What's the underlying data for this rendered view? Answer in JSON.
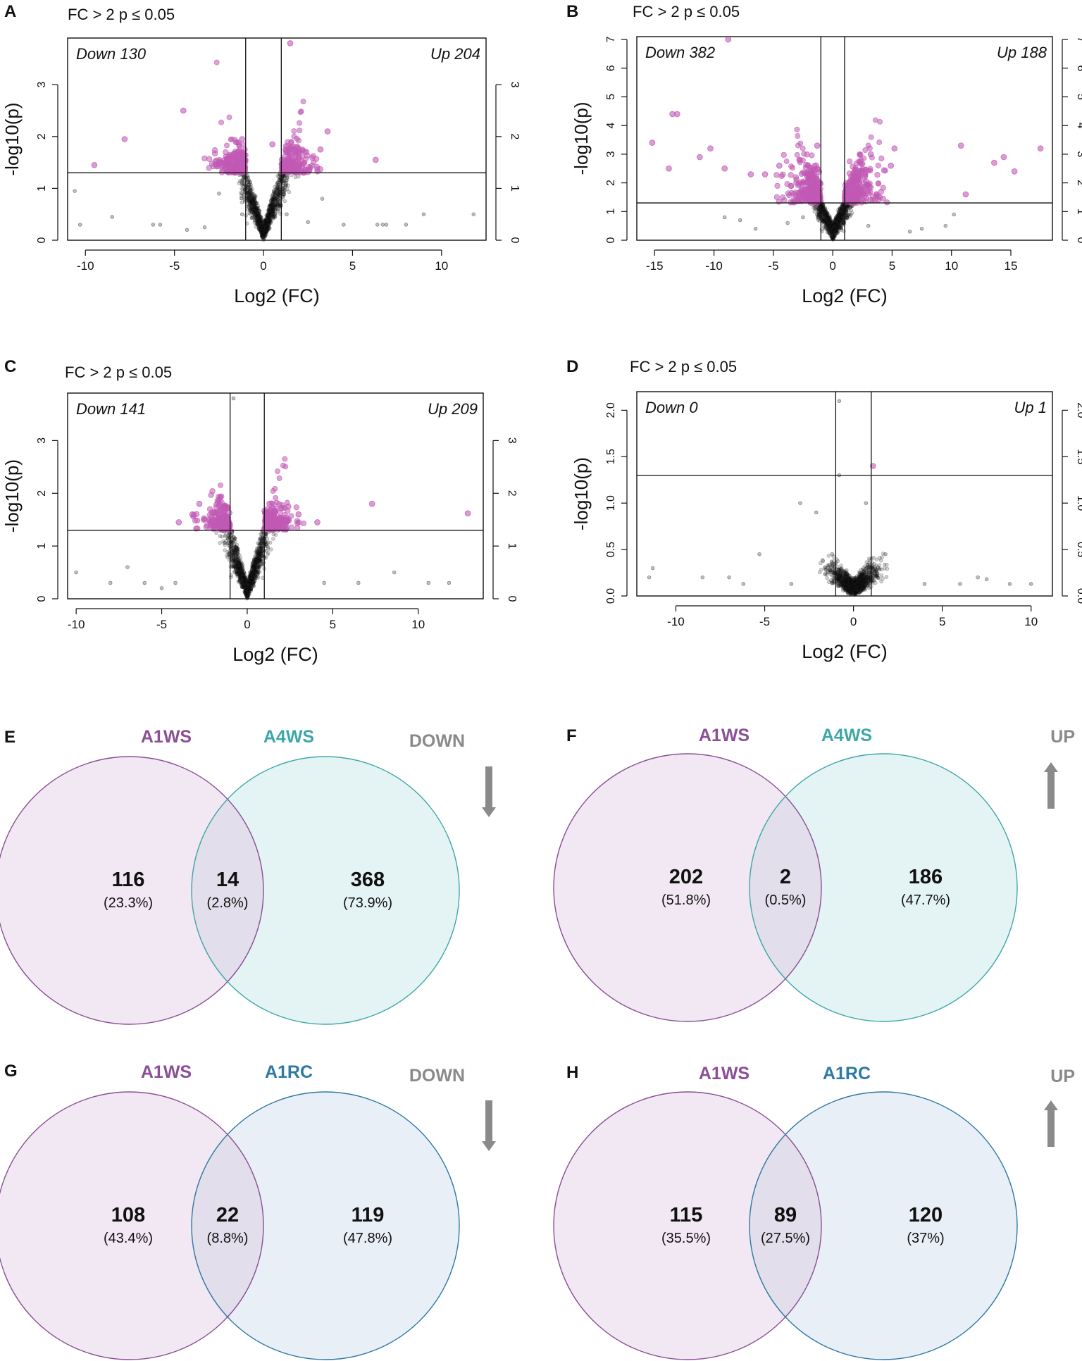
{
  "colors": {
    "sig": "#c15ab5",
    "nonsig": "#000000",
    "a1ws": "#8b4f96",
    "a4ws": "#3fa7a8",
    "a1rc": "#2f79a3",
    "a1ws_fill": "#f1e8f3",
    "a4ws_fill": "#e4f4f5",
    "a1rc_fill": "#e9eff7",
    "overlap_fill": "#e2deeb",
    "arrow": "#8a8a8a",
    "direction_label": "#8a8a8a"
  },
  "chart_data": [
    {
      "panel": "A",
      "type": "scatter",
      "subtype": "volcano",
      "criteria": "FC > 2   p ≤ 0.05",
      "xlabel": "Log2 (FC)",
      "ylabel": "-log10(p)",
      "xlim": [
        -11,
        12.5
      ],
      "ylim": [
        0,
        3.9
      ],
      "xticks": [
        -10,
        -5,
        0,
        5,
        10
      ],
      "xtick_labels": [
        "-10",
        "-5",
        "0",
        "5",
        "10"
      ],
      "yticks": [
        0,
        1,
        2,
        3
      ],
      "ytick_labels": [
        "0",
        "1",
        "2",
        "3"
      ],
      "fc_threshold": 1,
      "p_threshold": 1.3,
      "down_label": "Down 130",
      "up_label": "Up 204",
      "sig_points": [
        [
          -9.5,
          1.45
        ],
        [
          -7.8,
          1.95
        ],
        [
          -4.5,
          2.5
        ],
        [
          -1.2,
          1.95
        ],
        [
          0.5,
          1.85
        ],
        [
          1.5,
          3.8
        ],
        [
          3.6,
          2.1
        ],
        [
          6.3,
          1.55
        ],
        [
          3.2,
          1.75
        ],
        [
          -2.5,
          1.5
        ],
        [
          -1.5,
          1.62
        ],
        [
          1.9,
          1.8
        ]
      ],
      "nonsig_points": [
        [
          -10.6,
          0.95
        ],
        [
          -10.3,
          0.3
        ],
        [
          -8.5,
          0.45
        ],
        [
          -6.2,
          0.3
        ],
        [
          -5.8,
          0.3
        ],
        [
          -4.3,
          0.2
        ],
        [
          -3.3,
          0.25
        ],
        [
          2.5,
          0.35
        ],
        [
          4.5,
          0.3
        ],
        [
          6.4,
          0.3
        ],
        [
          6.7,
          0.3
        ],
        [
          6.9,
          0.3
        ],
        [
          8.0,
          0.3
        ],
        [
          9.0,
          0.5
        ],
        [
          11.8,
          0.5
        ],
        [
          -1.2,
          0.5
        ],
        [
          1.3,
          0.5
        ],
        [
          -2.5,
          0.9
        ],
        [
          3.3,
          0.8
        ]
      ]
    },
    {
      "panel": "B",
      "type": "scatter",
      "subtype": "volcano",
      "criteria": "FC > 2   p ≤ 0.05",
      "xlabel": "Log2 (FC)",
      "ylabel": "-log10(p)",
      "xlim": [
        -16.5,
        18.5
      ],
      "ylim": [
        0,
        7.1
      ],
      "xticks": [
        -15,
        -10,
        -5,
        0,
        5,
        10,
        15
      ],
      "xtick_labels": [
        "-15",
        "-10",
        "-5",
        "0",
        "5",
        "10",
        "15"
      ],
      "yticks": [
        0,
        1,
        2,
        3,
        4,
        5,
        6,
        7
      ],
      "ytick_labels": [
        "0",
        "1",
        "2",
        "3",
        "4",
        "5",
        "6",
        "7"
      ],
      "fc_threshold": 1,
      "p_threshold": 1.3,
      "down_label": "Down 382",
      "up_label": "Up 188",
      "sig_points": [
        [
          -8.8,
          7.0
        ],
        [
          -13.5,
          4.4
        ],
        [
          -13.1,
          4.4
        ],
        [
          -15.2,
          3.4
        ],
        [
          -13.8,
          2.5
        ],
        [
          -11.2,
          2.9
        ],
        [
          -10.3,
          3.2
        ],
        [
          -9.1,
          2.5
        ],
        [
          -6.9,
          2.3
        ],
        [
          -5.7,
          2.3
        ],
        [
          -4.5,
          2.6
        ],
        [
          -2.8,
          2.8
        ],
        [
          -1.3,
          3.3
        ],
        [
          3.2,
          3.0
        ],
        [
          4.9,
          2.6
        ],
        [
          5.2,
          3.2
        ],
        [
          10.8,
          3.3
        ],
        [
          11.2,
          1.6
        ],
        [
          13.6,
          2.7
        ],
        [
          14.4,
          2.9
        ],
        [
          15.3,
          2.4
        ],
        [
          17.5,
          3.2
        ]
      ],
      "nonsig_points": [
        [
          -9.1,
          0.8
        ],
        [
          -7.8,
          0.7
        ],
        [
          -6.5,
          0.4
        ],
        [
          -3.8,
          0.6
        ],
        [
          -2.5,
          0.8
        ],
        [
          3.0,
          0.5
        ],
        [
          6.5,
          0.3
        ],
        [
          7.5,
          0.4
        ],
        [
          9.5,
          0.5
        ],
        [
          10.2,
          0.9
        ]
      ]
    },
    {
      "panel": "C",
      "type": "scatter",
      "subtype": "volcano",
      "criteria": "FC > 2   p ≤ 0.05",
      "xlabel": "Log2 (FC)",
      "ylabel": "-log10(p)",
      "xlim": [
        -10.5,
        13.8
      ],
      "ylim": [
        0,
        3.9
      ],
      "xticks": [
        -10,
        -5,
        0,
        5,
        10
      ],
      "xtick_labels": [
        "-10",
        "-5",
        "0",
        "5",
        "10"
      ],
      "yticks": [
        0,
        1,
        2,
        3
      ],
      "ytick_labels": [
        "0",
        "1",
        "2",
        "3"
      ],
      "fc_threshold": 1,
      "p_threshold": 1.3,
      "down_label": "Down 141",
      "up_label": "Up 209",
      "sig_points": [
        [
          -4.0,
          1.45
        ],
        [
          -3.2,
          1.6
        ],
        [
          -2.8,
          1.8
        ],
        [
          -1.6,
          1.8
        ],
        [
          1.3,
          1.8
        ],
        [
          2.4,
          1.75
        ],
        [
          3.0,
          1.6
        ],
        [
          4.1,
          1.45
        ],
        [
          7.3,
          1.8
        ],
        [
          12.9,
          1.62
        ]
      ],
      "nonsig_points": [
        [
          -10.0,
          0.5
        ],
        [
          -8.0,
          0.3
        ],
        [
          -7.0,
          0.6
        ],
        [
          -6.0,
          0.3
        ],
        [
          -5.0,
          0.2
        ],
        [
          -4.2,
          0.3
        ],
        [
          -0.8,
          3.8
        ],
        [
          4.5,
          0.3
        ],
        [
          6.5,
          0.3
        ],
        [
          8.6,
          0.5
        ],
        [
          10.6,
          0.3
        ],
        [
          11.8,
          0.3
        ]
      ]
    },
    {
      "panel": "D",
      "type": "scatter",
      "subtype": "volcano",
      "criteria": "FC > 2   p ≤ 0.05",
      "xlabel": "Log2 (FC)",
      "ylabel": "-log10(p)",
      "xlim": [
        -12.2,
        11.2
      ],
      "ylim": [
        0,
        2.2
      ],
      "xticks": [
        -10,
        -5,
        0,
        5,
        10
      ],
      "xtick_labels": [
        "-10",
        "-5",
        "0",
        "5",
        "10"
      ],
      "yticks": [
        0,
        0.5,
        1.0,
        1.5,
        2.0
      ],
      "ytick_labels": [
        "0.0",
        "0.5",
        "1.0",
        "1.5",
        "2.0"
      ],
      "fc_threshold": 1,
      "p_threshold": 1.3,
      "down_label": "Down 0",
      "up_label": "Up 1",
      "sig_points": [
        [
          1.1,
          1.4
        ]
      ],
      "nonsig_points": [
        [
          -0.8,
          2.1
        ],
        [
          -0.8,
          1.3
        ],
        [
          -3.0,
          1.0
        ],
        [
          -2.1,
          0.9
        ],
        [
          0.7,
          1.0
        ],
        [
          -5.3,
          0.45
        ],
        [
          -11.3,
          0.3
        ],
        [
          -11.5,
          0.2
        ],
        [
          -8.5,
          0.2
        ],
        [
          -7.0,
          0.2
        ],
        [
          -6.2,
          0.13
        ],
        [
          -3.5,
          0.13
        ],
        [
          4.0,
          0.13
        ],
        [
          6.0,
          0.13
        ],
        [
          7.0,
          0.2
        ],
        [
          7.5,
          0.18
        ],
        [
          8.8,
          0.13
        ],
        [
          10.0,
          0.13
        ],
        [
          -1.2,
          0.45
        ],
        [
          1.8,
          0.45
        ]
      ]
    },
    {
      "panel": "E",
      "type": "venn",
      "set_left": "A1WS",
      "set_right": "A4WS",
      "direction": "DOWN",
      "arrow": "down",
      "left_only": "116",
      "left_only_pct": "(23.3%)",
      "overlap": "14",
      "overlap_pct": "(2.8%)",
      "right_only": "368",
      "right_only_pct": "(73.9%)"
    },
    {
      "panel": "F",
      "type": "venn",
      "set_left": "A1WS",
      "set_right": "A4WS",
      "direction": "UP",
      "arrow": "up",
      "left_only": "202",
      "left_only_pct": "(51.8%)",
      "overlap": "2",
      "overlap_pct": "(0.5%)",
      "right_only": "186",
      "right_only_pct": "(47.7%)"
    },
    {
      "panel": "G",
      "type": "venn",
      "set_left": "A1WS",
      "set_right": "A1RC",
      "direction": "DOWN",
      "arrow": "down",
      "left_only": "108",
      "left_only_pct": "(43.4%)",
      "overlap": "22",
      "overlap_pct": "(8.8%)",
      "right_only": "119",
      "right_only_pct": "(47.8%)"
    },
    {
      "panel": "H",
      "type": "venn",
      "set_left": "A1WS",
      "set_right": "A1RC",
      "direction": "UP",
      "arrow": "up",
      "left_only": "115",
      "left_only_pct": "(35.5%)",
      "overlap": "89",
      "overlap_pct": "(27.5%)",
      "right_only": "120",
      "right_only_pct": "(37%)"
    }
  ]
}
